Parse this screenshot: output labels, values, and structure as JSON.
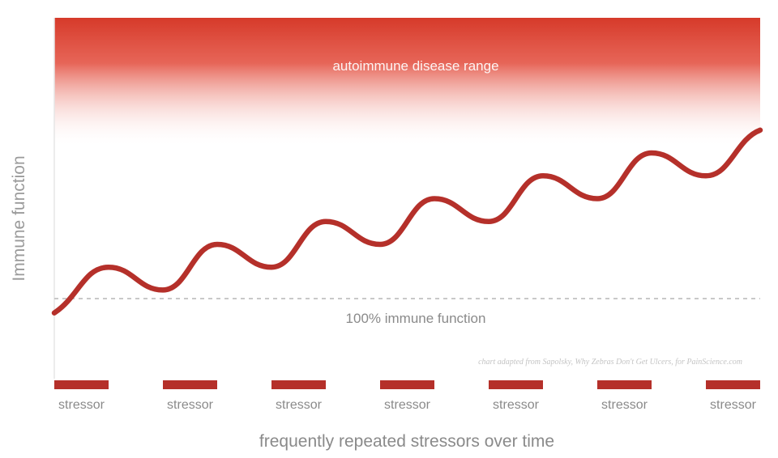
{
  "chart_data": {
    "type": "line",
    "title": "",
    "ylabel": "Immune function",
    "xlabel": "frequently repeated stressors over time",
    "grid": false,
    "legend": "none",
    "x_categories": [
      "stressor",
      "stressor",
      "stressor",
      "stressor",
      "stressor",
      "stressor",
      "stressor"
    ],
    "x": [
      0,
      1,
      2,
      3,
      4,
      5,
      6,
      6.5
    ],
    "series": [
      {
        "name": "",
        "color": "#b5302a",
        "x": [
          0,
          0.5,
          1,
          1.5,
          2,
          2.5,
          3,
          3.5,
          4,
          4.5,
          5,
          5.5,
          6,
          6.5
        ],
        "y": [
          0,
          0.24,
          0.12,
          0.36,
          0.24,
          0.48,
          0.36,
          0.6,
          0.48,
          0.72,
          0.6,
          0.84,
          0.72,
          0.96
        ]
      }
    ],
    "baseline": {
      "value": 0,
      "label": "100% immune function",
      "style": "dashed",
      "color": "#c8c8c8"
    },
    "range_band": {
      "label": "autoimmune disease range",
      "color": "#d63a2a"
    },
    "stressor_bar_color": "#b5302a",
    "ylim": [
      -0.35,
      1.55
    ],
    "xlim": [
      0,
      6.5
    ]
  },
  "credit": "chart adapted from Sapolsky, Why Zebras Don't Get Ulcers, for PainScience.com"
}
